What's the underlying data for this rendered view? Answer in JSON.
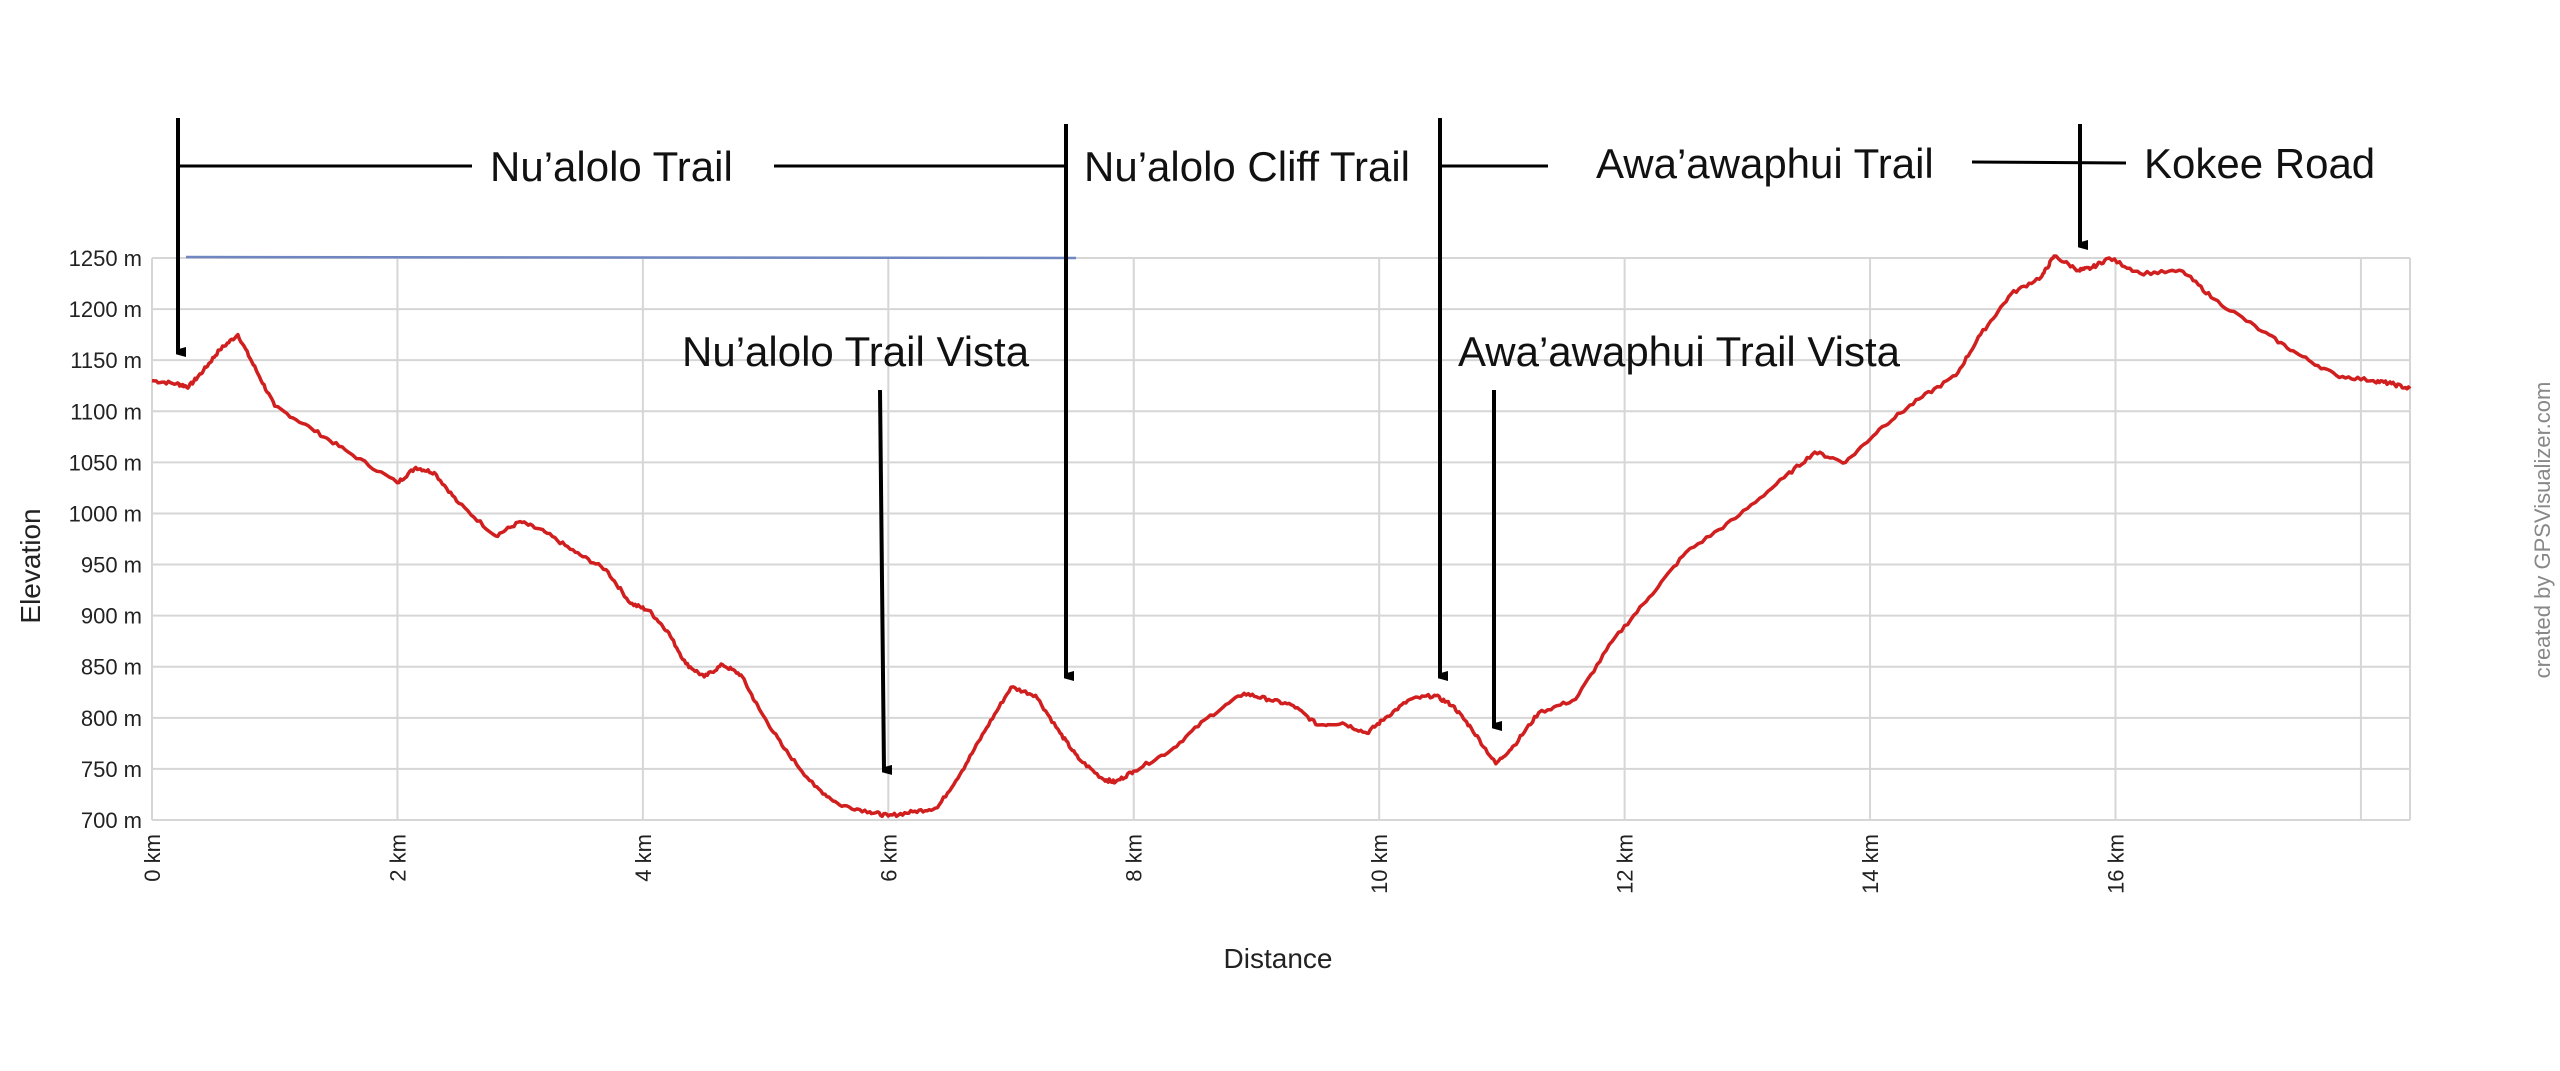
{
  "chart_data": {
    "type": "line",
    "xlabel": "Distance",
    "ylabel": "Elevation",
    "xlim": [
      0,
      18.4
    ],
    "ylim": [
      700,
      1250
    ],
    "x_ticks": [
      "0 km",
      "2 km",
      "4 km",
      "6 km",
      "8 km",
      "10 km",
      "12 km",
      "14 km",
      "16 km"
    ],
    "x_tick_values": [
      0,
      2,
      4,
      6,
      8,
      10,
      12,
      14,
      16
    ],
    "y_ticks": [
      "700 m",
      "750 m",
      "800 m",
      "850 m",
      "900 m",
      "950 m",
      "1000 m",
      "1050 m",
      "1100 m",
      "1150 m",
      "1200 m",
      "1250 m"
    ],
    "y_tick_values": [
      700,
      750,
      800,
      850,
      900,
      950,
      1000,
      1050,
      1100,
      1150,
      1200,
      1250
    ],
    "grid": true,
    "series": [
      {
        "color": "#d11f1f",
        "x": [
          0,
          0.2,
          0.3,
          0.42,
          0.55,
          0.7,
          0.85,
          1.0,
          1.3,
          1.6,
          2.0,
          2.15,
          2.3,
          2.5,
          2.8,
          3.0,
          3.2,
          3.45,
          3.7,
          3.9,
          4.05,
          4.2,
          4.35,
          4.5,
          4.65,
          4.8,
          4.95,
          5.15,
          5.4,
          5.6,
          5.85,
          6.0,
          6.2,
          6.4,
          6.6,
          6.8,
          7.0,
          7.2,
          7.4,
          7.55,
          7.75,
          7.85,
          8.0,
          8.3,
          8.6,
          8.9,
          9.1,
          9.3,
          9.5,
          9.7,
          9.9,
          10.05,
          10.25,
          10.45,
          10.6,
          10.75,
          10.95,
          11.1,
          11.3,
          11.6,
          11.9,
          12.2,
          12.5,
          12.9,
          13.3,
          13.55,
          13.8,
          14.1,
          14.4,
          14.7,
          14.9,
          15.15,
          15.4,
          15.5,
          15.7,
          15.8,
          15.95,
          16.2,
          16.55,
          16.8,
          17.2,
          17.5,
          17.8,
          18.1,
          18.25,
          18.4
        ],
        "y": [
          1130,
          1127,
          1124,
          1140,
          1160,
          1175,
          1140,
          1105,
          1083,
          1060,
          1030,
          1045,
          1040,
          1010,
          978,
          992,
          982,
          962,
          945,
          912,
          905,
          885,
          853,
          840,
          852,
          842,
          808,
          770,
          733,
          715,
          708,
          704,
          708,
          712,
          748,
          790,
          830,
          822,
          785,
          760,
          740,
          737,
          748,
          768,
          800,
          824,
          818,
          812,
          793,
          795,
          785,
          800,
          818,
          822,
          812,
          790,
          755,
          773,
          805,
          818,
          875,
          918,
          962,
          995,
          1035,
          1060,
          1050,
          1085,
          1112,
          1135,
          1175,
          1215,
          1232,
          1252,
          1238,
          1240,
          1250,
          1235,
          1237,
          1210,
          1178,
          1155,
          1135,
          1130,
          1127,
          1122
        ]
      }
    ]
  },
  "annotations": {
    "nualolo_trail": "Nu’alolo Trail",
    "nualolo_cliff_trail": "Nu’alolo Cliff Trail",
    "awaawaphui_trail": "Awa’awaphui Trail",
    "kokee_road": "Kokee Road",
    "nualolo_trail_vista": "Nu’alolo Trail Vista",
    "awaawaphui_trail_vista": "Awa’awaphui Trail Vista"
  },
  "credit": "created by GPSVisualizer.com"
}
